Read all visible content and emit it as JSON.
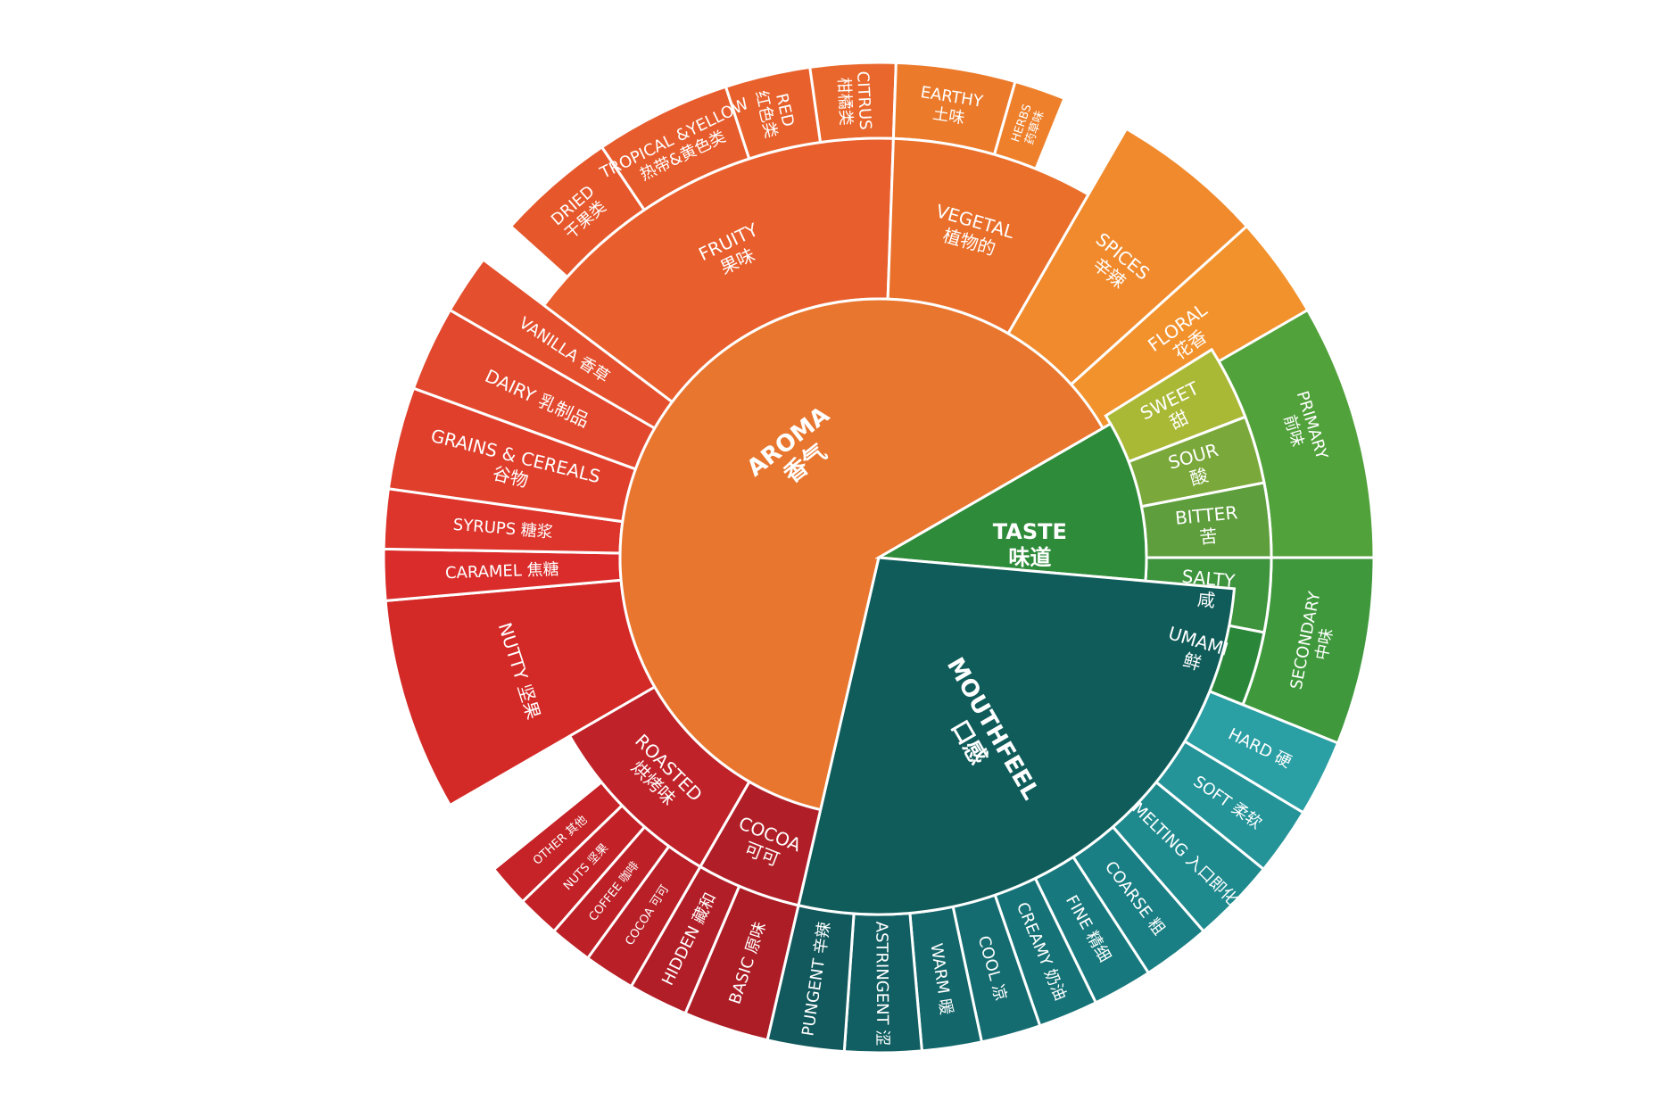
{
  "wheel": {
    "core": [
      {
        "id": "aroma",
        "label": "AROMA",
        "label_zh": "香气",
        "color": "#E8762E"
      },
      {
        "id": "taste",
        "label": "TASTE",
        "label_zh": "味道",
        "color": "#2E8B3A"
      },
      {
        "id": "mouthfeel",
        "label": "MOUTHFEEL",
        "label_zh": "口感",
        "color": "#0F5C5A"
      }
    ],
    "middle": [
      {
        "id": "nutty",
        "label": "NUTTY 坚果",
        "label_zh": "",
        "color": "#D42A27"
      },
      {
        "id": "caramel",
        "label": "CARAMEL 焦糖",
        "label_zh": "",
        "color": "#DA2D2B"
      },
      {
        "id": "syrups",
        "label": "SYRUPS 糖浆",
        "label_zh": "",
        "color": "#DD352C"
      },
      {
        "id": "grains",
        "label": "GRAINS & CEREALS",
        "label_zh": "谷物",
        "color": "#E03F2C"
      },
      {
        "id": "dairy",
        "label": "DAIRY 乳制品",
        "label_zh": "",
        "color": "#E2482D"
      },
      {
        "id": "vanilla",
        "label": "VANILLA 香草",
        "label_zh": "",
        "color": "#E4502E"
      },
      {
        "id": "fruity",
        "label": "FRUITY",
        "label_zh": "果味",
        "color": "#E85E2C"
      },
      {
        "id": "vegetal",
        "label": "VEGETAL",
        "label_zh": "植物的",
        "color": "#EA6F2A"
      },
      {
        "id": "spices",
        "label": "SPICES",
        "label_zh": "辛辣",
        "color": "#F08A2D"
      },
      {
        "id": "floral",
        "label": "FLORAL",
        "label_zh": "花香",
        "color": "#F2922D"
      },
      {
        "id": "sweet",
        "label": "SWEET",
        "label_zh": "甜",
        "color": "#A9B936"
      },
      {
        "id": "sour",
        "label": "SOUR",
        "label_zh": "酸",
        "color": "#7BA83A"
      },
      {
        "id": "bitter",
        "label": "BITTER",
        "label_zh": "苦",
        "color": "#5E9E3C"
      },
      {
        "id": "salty",
        "label": "SALTY",
        "label_zh": "咸",
        "color": "#3E943D"
      },
      {
        "id": "umami",
        "label": "UMAMI",
        "label_zh": "鲜",
        "color": "#2A873A"
      },
      {
        "id": "roasted",
        "label": "ROASTED",
        "label_zh": "烘烤味",
        "color": "#BF2228"
      },
      {
        "id": "cocoa",
        "label": "COCOA",
        "label_zh": "可可",
        "color": "#B01F27"
      }
    ],
    "outer": [
      {
        "id": "other",
        "label": "OTHER 其他",
        "color": "#C52327"
      },
      {
        "id": "nuts",
        "label": "NUTS 坚果",
        "color": "#C22227"
      },
      {
        "id": "coffee",
        "label": "COFFEE 咖啡",
        "color": "#BD2127"
      },
      {
        "id": "cocoa-o",
        "label": "COCOA 可可",
        "color": "#B81F27"
      },
      {
        "id": "hidden",
        "label": "HIDDEN 藏和",
        "color": "#B21E27"
      },
      {
        "id": "basic",
        "label": "BASIC 原味",
        "color": "#AD1D26"
      },
      {
        "id": "dried",
        "label": "DRIED",
        "label_zh": "干果类",
        "color": "#E6582C"
      },
      {
        "id": "tropical",
        "label": "TROPICAL &YELLOW",
        "label_zh": "热带&黄色类",
        "color": "#E75C2C"
      },
      {
        "id": "red",
        "label": "RED",
        "label_zh": "红色类",
        "color": "#E8612C"
      },
      {
        "id": "citrus",
        "label": "CITRUS",
        "label_zh": "柑橘类",
        "color": "#E9672C"
      },
      {
        "id": "earthy",
        "label": "EARTHY",
        "label_zh": "土味",
        "color": "#EB7A2B"
      },
      {
        "id": "herbs",
        "label": "HERBS",
        "label_zh": "药草味",
        "color": "#EE802B"
      },
      {
        "id": "primary",
        "label": "PRIMARY",
        "label_zh": "前味",
        "color": "#52A23C"
      },
      {
        "id": "secondary",
        "label": "SECONDARY",
        "label_zh": "中味",
        "color": "#3F993C"
      },
      {
        "id": "hard",
        "label": "HARD 硬",
        "color": "#2A9FA4"
      },
      {
        "id": "soft",
        "label": "SOFT 柔软",
        "color": "#249499"
      },
      {
        "id": "melting",
        "label": "MELTING 入口即化",
        "color": "#1F8A8E"
      },
      {
        "id": "coarse",
        "label": "COARSE 粗",
        "color": "#1A7F84"
      },
      {
        "id": "fine",
        "label": "FINE 精细",
        "color": "#17797D"
      },
      {
        "id": "creamy",
        "label": "CREAMY 奶油",
        "color": "#157276"
      },
      {
        "id": "cool",
        "label": "COOL 凉",
        "color": "#146C70"
      },
      {
        "id": "warm",
        "label": "WARM 暖",
        "color": "#13666A"
      },
      {
        "id": "astringent",
        "label": "ASTRINGENT 涩",
        "color": "#125F63"
      },
      {
        "id": "pungent",
        "label": "PUNGENT 辛辣",
        "color": "#11595D"
      }
    ]
  }
}
